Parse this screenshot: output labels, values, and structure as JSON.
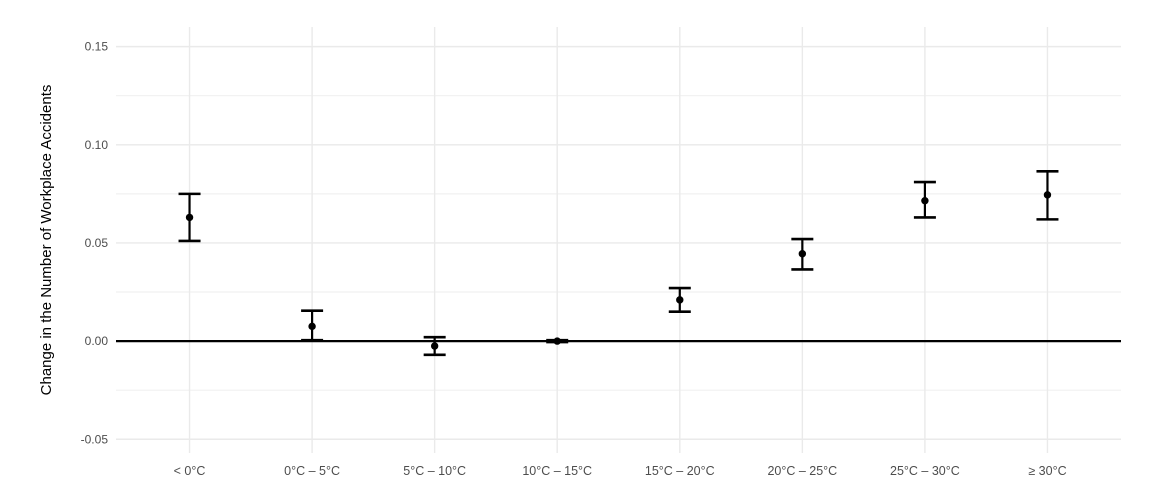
{
  "figure": {
    "kind": "point-estimate chart with confidence interval error bars",
    "background": "#ffffff"
  },
  "colors": {
    "background": "#ffffff",
    "grid_major": "#eaeaea",
    "grid_minor": "#f1f1f1",
    "axis_text": "#4d4d4d",
    "axis_title": "#000000",
    "point": "#000000",
    "ref_line": "#000000"
  },
  "chart_data": {
    "type": "scatter",
    "subtype": "pointrange-errorbar",
    "title": "",
    "xlabel": "",
    "ylabel": "Change in the Number of Workplace Accidents",
    "categories": [
      "< 0°C",
      "0°C – 5°C",
      "5°C – 10°C",
      "10°C – 15°C",
      "15°C – 20°C",
      "20°C – 25°C",
      "25°C – 30°C",
      "≥ 30°C"
    ],
    "values": [
      0.063,
      0.0075,
      -0.0025,
      0.0,
      0.021,
      0.0445,
      0.0715,
      0.0745
    ],
    "ci_low": [
      0.051,
      0.0005,
      -0.007,
      -0.0005,
      0.015,
      0.0365,
      0.063,
      0.062
    ],
    "ci_high": [
      0.075,
      0.0155,
      0.002,
      0.0005,
      0.027,
      0.052,
      0.081,
      0.0865
    ],
    "ref_line_y": 0,
    "ylim": [
      -0.057,
      0.16
    ],
    "yticks": [
      -0.05,
      0,
      0.05,
      0.1,
      0.15
    ],
    "ytick_labels": [
      "-0.05",
      "0.00",
      "0.05",
      "0.10",
      "0.15"
    ],
    "yticks_minor": [
      -0.025,
      0.025,
      0.075,
      0.125
    ],
    "grid": true,
    "legend_position": "none"
  }
}
